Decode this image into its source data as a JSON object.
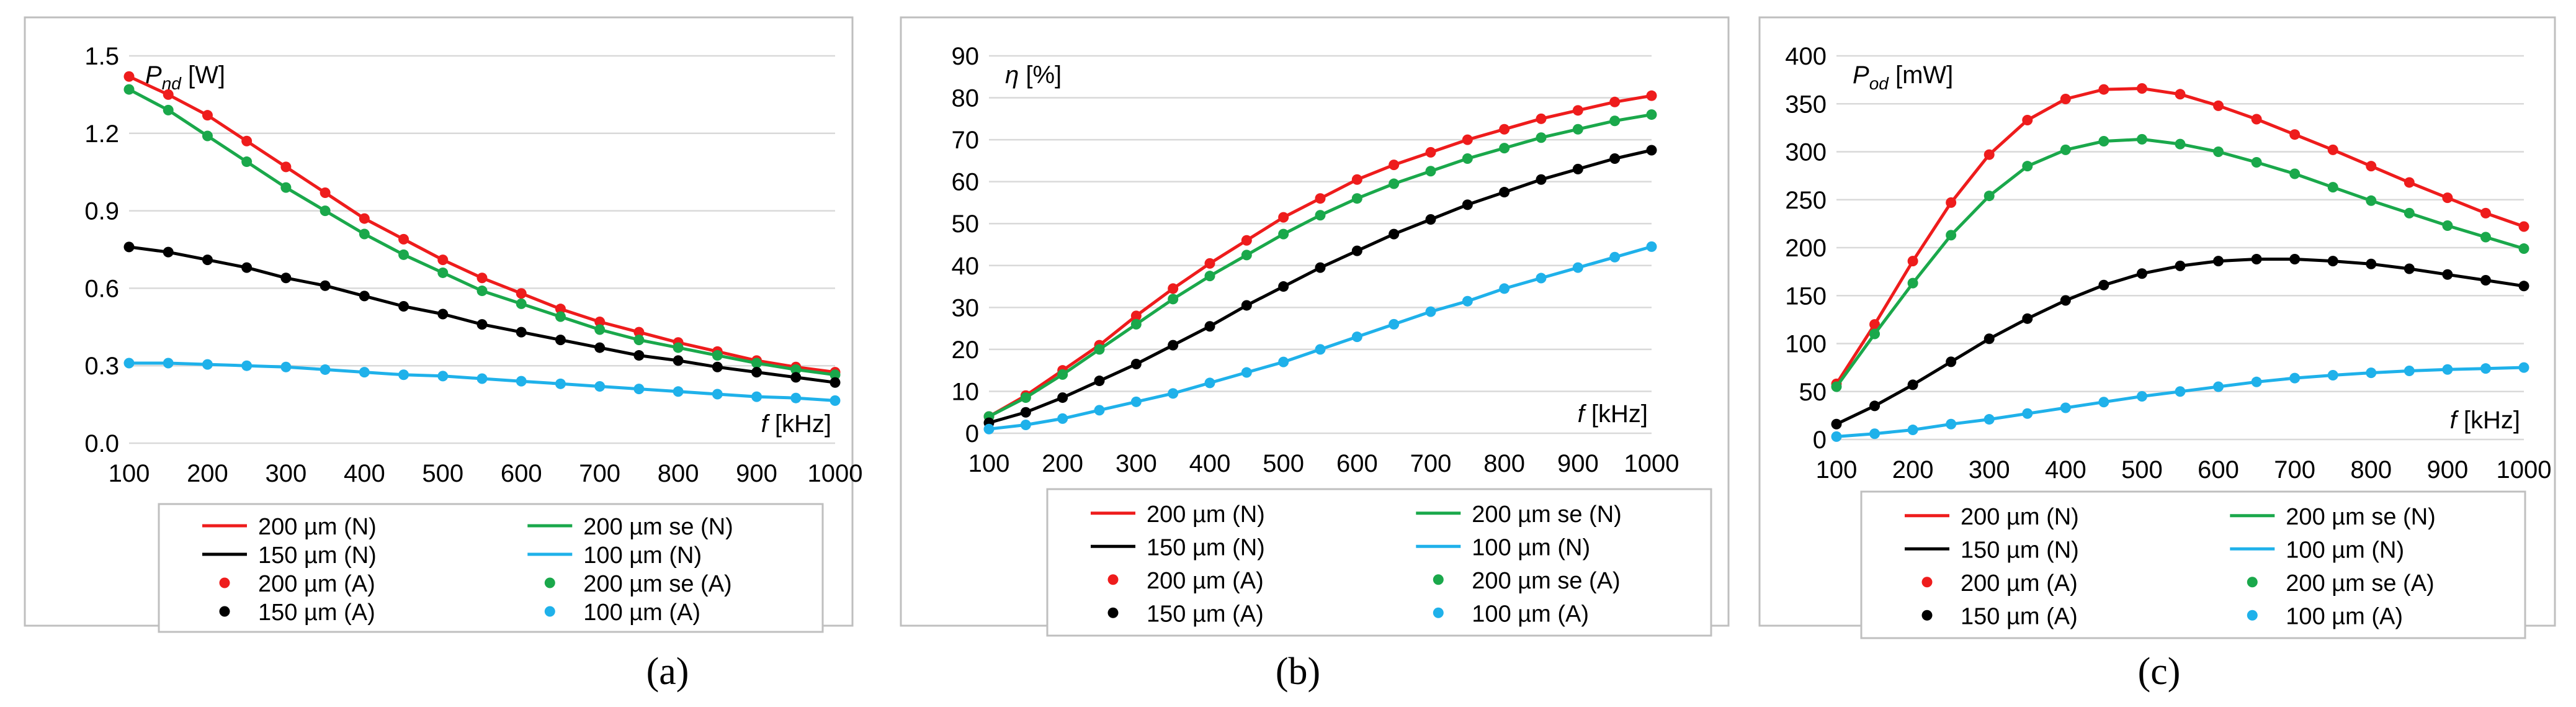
{
  "colors": {
    "red": "#ee1c1c",
    "green": "#1aa84b",
    "black": "#000000",
    "blue": "#1fb1ea",
    "grid": "#d9d9d9",
    "frame": "#bfbfbf"
  },
  "chart_data": [
    {
      "type": "line",
      "panel_label": "(a)",
      "ylabel": "P_nd",
      "ylabel_main": "P",
      "ylabel_sub": "nd",
      "ylabel_unit": " [W]",
      "xlabel_main": "f",
      "xlabel_unit": " [kHz]",
      "ylim": [
        0,
        1.5
      ],
      "yticks": [
        0,
        0.3,
        0.6,
        0.9,
        1.2,
        1.5
      ],
      "ytick_labels": [
        "0.0",
        "0.3",
        "0.6",
        "0.9",
        "1.2",
        "1.5"
      ],
      "xlim": [
        100,
        1000
      ],
      "xticks": [
        100,
        200,
        300,
        400,
        500,
        600,
        700,
        800,
        900,
        1000
      ],
      "xtick_labels": [
        "100",
        "200",
        "300",
        "400",
        "500",
        "600",
        "700",
        "800",
        "900",
        "1000"
      ],
      "x": [
        100,
        150,
        200,
        250,
        300,
        350,
        400,
        450,
        500,
        550,
        600,
        650,
        700,
        750,
        800,
        850,
        900,
        950,
        1000
      ],
      "series": [
        {
          "name": "200 µm",
          "color": "red",
          "values": [
            1.42,
            1.35,
            1.27,
            1.17,
            1.07,
            0.97,
            0.87,
            0.79,
            0.71,
            0.64,
            0.58,
            0.52,
            0.47,
            0.43,
            0.39,
            0.355,
            0.32,
            0.295,
            0.275
          ]
        },
        {
          "name": "200 µm se",
          "color": "green",
          "values": [
            1.37,
            1.29,
            1.19,
            1.09,
            0.99,
            0.9,
            0.81,
            0.73,
            0.66,
            0.59,
            0.54,
            0.49,
            0.44,
            0.4,
            0.37,
            0.34,
            0.31,
            0.285,
            0.265
          ]
        },
        {
          "name": "150 µm",
          "color": "black",
          "values": [
            0.76,
            0.74,
            0.71,
            0.68,
            0.64,
            0.61,
            0.57,
            0.53,
            0.5,
            0.46,
            0.43,
            0.4,
            0.37,
            0.34,
            0.32,
            0.295,
            0.275,
            0.255,
            0.235
          ]
        },
        {
          "name": "100 µm",
          "color": "blue",
          "values": [
            0.31,
            0.31,
            0.305,
            0.3,
            0.295,
            0.285,
            0.275,
            0.265,
            0.26,
            0.25,
            0.24,
            0.23,
            0.22,
            0.21,
            0.2,
            0.19,
            0.18,
            0.175,
            0.165
          ]
        }
      ],
      "legend": [
        {
          "kind": "line",
          "color": "red",
          "label": "200 µm (N)"
        },
        {
          "kind": "line",
          "color": "green",
          "label": "200 µm se (N)"
        },
        {
          "kind": "line",
          "color": "black",
          "label": "150 µm (N)"
        },
        {
          "kind": "line",
          "color": "blue",
          "label": "100 µm (N)"
        },
        {
          "kind": "dot",
          "color": "red",
          "label": "200 µm (A)"
        },
        {
          "kind": "dot",
          "color": "green",
          "label": "200 µm se (A)"
        },
        {
          "kind": "dot",
          "color": "black",
          "label": "150 µm (A)"
        },
        {
          "kind": "dot",
          "color": "blue",
          "label": "100 µm (A)"
        }
      ]
    },
    {
      "type": "line",
      "panel_label": "(b)",
      "ylabel": "η",
      "ylabel_main": "η",
      "ylabel_sub": "",
      "ylabel_unit": " [%]",
      "xlabel_main": "f",
      "xlabel_unit": " [kHz]",
      "ylim": [
        0,
        90
      ],
      "yticks": [
        0,
        10,
        20,
        30,
        40,
        50,
        60,
        70,
        80,
        90
      ],
      "ytick_labels": [
        "0",
        "10",
        "20",
        "30",
        "40",
        "50",
        "60",
        "70",
        "80",
        "90"
      ],
      "xlim": [
        100,
        1000
      ],
      "xticks": [
        100,
        200,
        300,
        400,
        500,
        600,
        700,
        800,
        900,
        1000
      ],
      "xtick_labels": [
        "100",
        "200",
        "300",
        "400",
        "500",
        "600",
        "700",
        "800",
        "900",
        "1000"
      ],
      "x": [
        100,
        150,
        200,
        250,
        300,
        350,
        400,
        450,
        500,
        550,
        600,
        650,
        700,
        750,
        800,
        850,
        900,
        950,
        1000
      ],
      "series": [
        {
          "name": "200 µm",
          "color": "red",
          "values": [
            4,
            9,
            15,
            21,
            28,
            34.5,
            40.5,
            46,
            51.5,
            56,
            60.5,
            64,
            67,
            70,
            72.5,
            75,
            77,
            79,
            80.5
          ]
        },
        {
          "name": "200 µm se",
          "color": "green",
          "values": [
            4,
            8.5,
            14,
            20,
            26,
            32,
            37.5,
            42.5,
            47.5,
            52,
            56,
            59.5,
            62.5,
            65.5,
            68,
            70.5,
            72.5,
            74.5,
            76
          ]
        },
        {
          "name": "150 µm",
          "color": "black",
          "values": [
            2.5,
            5,
            8.5,
            12.5,
            16.5,
            21,
            25.5,
            30.5,
            35,
            39.5,
            43.5,
            47.5,
            51,
            54.5,
            57.5,
            60.5,
            63,
            65.5,
            67.5
          ]
        },
        {
          "name": "100 µm",
          "color": "blue",
          "values": [
            1,
            2,
            3.5,
            5.5,
            7.5,
            9.5,
            12,
            14.5,
            17,
            20,
            23,
            26,
            29,
            31.5,
            34.5,
            37,
            39.5,
            42,
            44.5
          ]
        }
      ],
      "legend": [
        {
          "kind": "line",
          "color": "red",
          "label": "200 µm (N)"
        },
        {
          "kind": "line",
          "color": "green",
          "label": "200 µm se (N)"
        },
        {
          "kind": "line",
          "color": "black",
          "label": "150 µm (N)"
        },
        {
          "kind": "line",
          "color": "blue",
          "label": "100 µm (N)"
        },
        {
          "kind": "dot",
          "color": "red",
          "label": "200 µm (A)"
        },
        {
          "kind": "dot",
          "color": "green",
          "label": "200 µm se (A)"
        },
        {
          "kind": "dot",
          "color": "black",
          "label": "150 µm (A)"
        },
        {
          "kind": "dot",
          "color": "blue",
          "label": "100 µm (A)"
        }
      ]
    },
    {
      "type": "line",
      "panel_label": "(c)",
      "ylabel": "P_od",
      "ylabel_main": "P",
      "ylabel_sub": "od",
      "ylabel_unit": " [mW]",
      "xlabel_main": "f",
      "xlabel_unit": " [kHz]",
      "ylim": [
        0,
        400
      ],
      "yticks": [
        0,
        50,
        100,
        150,
        200,
        250,
        300,
        350,
        400
      ],
      "ytick_labels": [
        "0",
        "50",
        "100",
        "150",
        "200",
        "250",
        "300",
        "350",
        "400"
      ],
      "xlim": [
        100,
        1000
      ],
      "xticks": [
        100,
        200,
        300,
        400,
        500,
        600,
        700,
        800,
        900,
        1000
      ],
      "xtick_labels": [
        "100",
        "200",
        "300",
        "400",
        "500",
        "600",
        "700",
        "800",
        "900",
        "1000"
      ],
      "x": [
        100,
        150,
        200,
        250,
        300,
        350,
        400,
        450,
        500,
        550,
        600,
        650,
        700,
        750,
        800,
        850,
        900,
        950,
        1000
      ],
      "series": [
        {
          "name": "200 µm",
          "color": "red",
          "values": [
            58,
            120,
            186,
            247,
            297,
            333,
            355,
            365,
            366,
            360,
            348,
            334,
            318,
            302,
            285,
            268,
            252,
            236,
            222
          ]
        },
        {
          "name": "200 µm se",
          "color": "green",
          "values": [
            55,
            110,
            163,
            213,
            254,
            285,
            302,
            311,
            313,
            308,
            300,
            289,
            277,
            263,
            249,
            236,
            223,
            211,
            199
          ]
        },
        {
          "name": "150 µm",
          "color": "black",
          "values": [
            16,
            35,
            57,
            81,
            105,
            126,
            145,
            161,
            173,
            181,
            186,
            188,
            188,
            186,
            183,
            178,
            172,
            166,
            160
          ]
        },
        {
          "name": "100 µm",
          "color": "blue",
          "values": [
            3,
            6,
            10,
            16,
            21,
            27,
            33,
            39,
            45,
            50,
            55,
            60,
            64,
            67,
            69.5,
            71.5,
            73,
            74,
            75
          ]
        }
      ],
      "legend": [
        {
          "kind": "line",
          "color": "red",
          "label": "200 µm (N)"
        },
        {
          "kind": "line",
          "color": "green",
          "label": "200 µm se (N)"
        },
        {
          "kind": "line",
          "color": "black",
          "label": "150 µm (N)"
        },
        {
          "kind": "line",
          "color": "blue",
          "label": "100 µm (N)"
        },
        {
          "kind": "dot",
          "color": "red",
          "label": "200 µm (A)"
        },
        {
          "kind": "dot",
          "color": "green",
          "label": "200 µm se (A)"
        },
        {
          "kind": "dot",
          "color": "black",
          "label": "150 µm (A)"
        },
        {
          "kind": "dot",
          "color": "blue",
          "label": "100 µm (A)"
        }
      ]
    }
  ]
}
